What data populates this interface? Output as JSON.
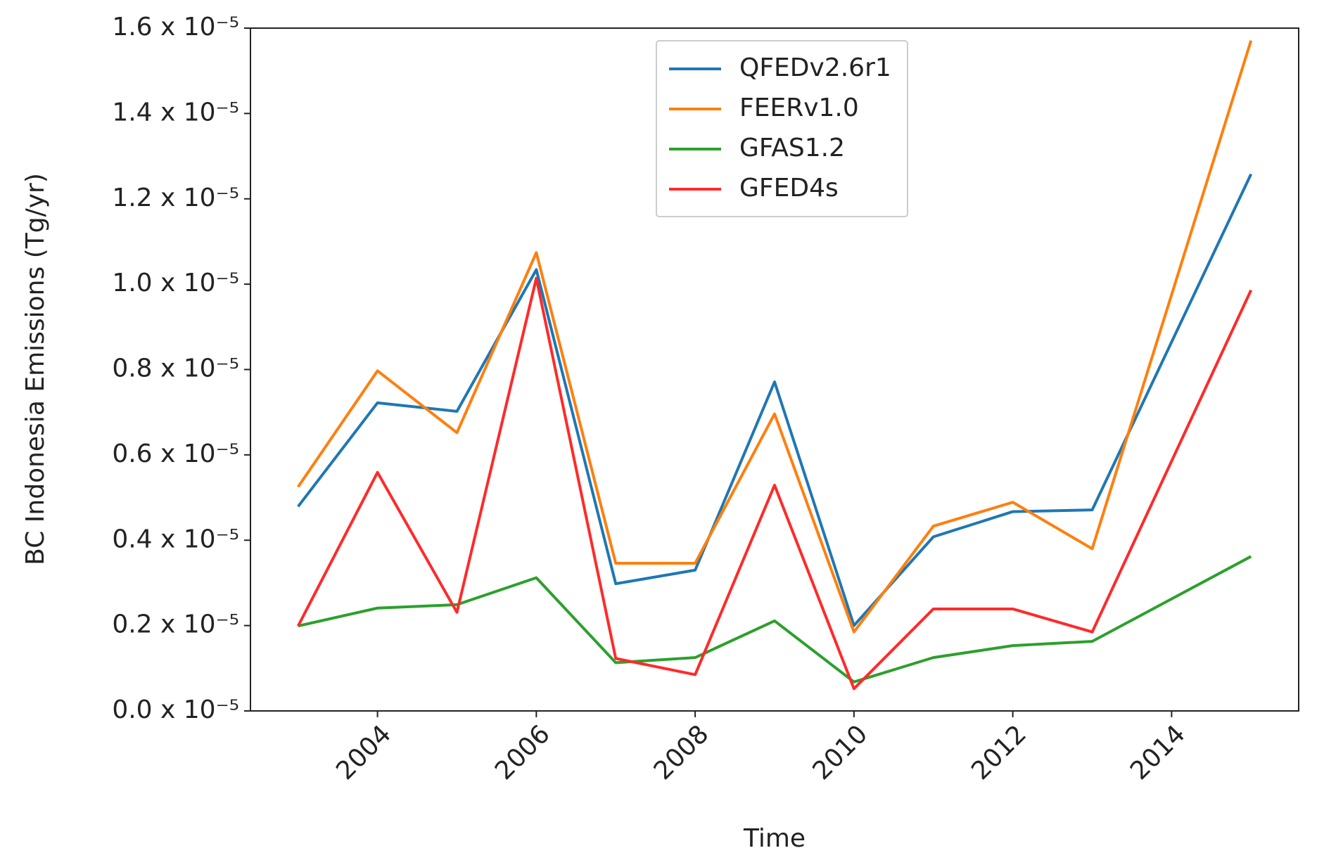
{
  "chart_data": {
    "type": "line",
    "x_label": "Time",
    "y_label": "BC Indonesia Emissions (Tg/yr)",
    "x": [
      2003,
      2004,
      2005,
      2006,
      2007,
      2008,
      2009,
      2010,
      2011,
      2012,
      2013,
      2015
    ],
    "series": [
      {
        "name": "QFEDv2.6r1",
        "color": "#1f77b4",
        "values": [
          4.79e-06,
          7.22e-06,
          7.02e-06,
          1.034e-05,
          2.98e-06,
          3.3e-06,
          7.71e-06,
          2e-06,
          4.08e-06,
          4.67e-06,
          4.71e-06,
          1.258e-05
        ]
      },
      {
        "name": "FEERv1.0",
        "color": "#ff7f0e",
        "values": [
          5.25e-06,
          7.97e-06,
          6.52e-06,
          1.074e-05,
          3.46e-06,
          3.46e-06,
          6.96e-06,
          1.85e-06,
          4.33e-06,
          4.89e-06,
          3.8e-06,
          1.571e-05
        ]
      },
      {
        "name": "GFAS1.2",
        "color": "#2ca02c",
        "values": [
          1.99e-06,
          2.41e-06,
          2.49e-06,
          3.12e-06,
          1.13e-06,
          1.25e-06,
          2.11e-06,
          6.8e-07,
          1.25e-06,
          1.53e-06,
          1.63e-06,
          3.62e-06
        ]
      },
      {
        "name": "GFED4s",
        "color": "#ff2a2a",
        "values": [
          1.99e-06,
          5.59e-06,
          2.31e-06,
          1.014e-05,
          1.23e-06,
          8.5e-07,
          5.29e-06,
          5.2e-07,
          2.39e-06,
          2.39e-06,
          1.85e-06,
          9.86e-06
        ]
      }
    ],
    "xlim": [
      2002.4,
      2015.6
    ],
    "xticks": [
      2004,
      2006,
      2008,
      2010,
      2012,
      2014
    ],
    "ylim": [
      0,
      1.6e-05
    ],
    "yticks": [
      {
        "value": 0,
        "label": "0.0 x 10⁻⁵"
      },
      {
        "value": 2e-06,
        "label": "0.2 x 10⁻⁵"
      },
      {
        "value": 4e-06,
        "label": "0.4 x 10⁻⁵"
      },
      {
        "value": 6e-06,
        "label": "0.6 x 10⁻⁵"
      },
      {
        "value": 8e-06,
        "label": "0.8 x 10⁻⁵"
      },
      {
        "value": 1e-05,
        "label": "1.0 x 10⁻⁵"
      },
      {
        "value": 1.2e-05,
        "label": "1.2 x 10⁻⁵"
      },
      {
        "value": 1.4e-05,
        "label": "1.4 x 10⁻⁵"
      },
      {
        "value": 1.6e-05,
        "label": "1.6 x 10⁻⁵"
      }
    ],
    "grid": false,
    "legend": "top-center"
  }
}
